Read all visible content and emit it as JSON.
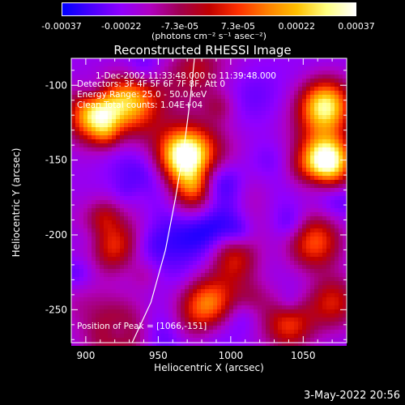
{
  "colorbar": {
    "tick_labels": [
      "-0.00037",
      "-0.00022",
      "-7.3e-05",
      "7.3e-05",
      "0.00022",
      "0.00037"
    ],
    "tick_values": [
      -0.00037,
      -0.00022,
      -7.3e-05,
      7.3e-05,
      0.00022,
      0.00037
    ],
    "units": "(photons cm⁻² s⁻¹ asec⁻²)",
    "colors": [
      "#0000ff",
      "#4b00ff",
      "#9000ff",
      "#b000c0",
      "#a00050",
      "#c00000",
      "#ff3000",
      "#ff8000",
      "#ffc000",
      "#ffff80",
      "#ffffff"
    ]
  },
  "annotations": {
    "time_range": "1-Dec-2002 11:33:48.000 to 11:39:48.000",
    "detectors": "Detectors: 3F 4F 5F 6F 7F 8F, Att 0",
    "energy": "Energy Range: 25.0 - 50.0 keV",
    "method": "Clean    Total counts: 1.04E+04",
    "peak": "Position of Peak = [1066,-151]"
  },
  "timestamp": "3-May-2022 20:56",
  "chart_data": {
    "type": "heatmap",
    "title": "Reconstructed RHESSI Image",
    "xlabel": "Heliocentric X (arcsec)",
    "ylabel": "Heliocentric Y (arcsec)",
    "xlim": [
      890,
      1080
    ],
    "ylim": [
      -272,
      -82
    ],
    "xticks": [
      900,
      950,
      1000,
      1050
    ],
    "yticks": [
      -100,
      -150,
      -200,
      -250
    ],
    "peak_position": [
      1066,
      -151
    ],
    "bright_sources": [
      {
        "x": 1066,
        "y": -151,
        "intensity": 1.0
      },
      {
        "x": 968,
        "y": -148,
        "intensity": 0.85
      },
      {
        "x": 905,
        "y": -120,
        "intensity": 0.7
      },
      {
        "x": 930,
        "y": -110,
        "intensity": 0.6
      },
      {
        "x": 1065,
        "y": -115,
        "intensity": 0.75
      },
      {
        "x": 1058,
        "y": -205,
        "intensity": 0.6
      },
      {
        "x": 1000,
        "y": -215,
        "intensity": 0.55
      },
      {
        "x": 920,
        "y": -210,
        "intensity": 0.55
      },
      {
        "x": 985,
        "y": -245,
        "intensity": 0.5
      },
      {
        "x": 1040,
        "y": -260,
        "intensity": 0.45
      },
      {
        "x": 1070,
        "y": -245,
        "intensity": 0.4
      },
      {
        "x": 975,
        "y": -175,
        "intensity": 0.45
      }
    ],
    "limb_curve": [
      [
        932,
        -272
      ],
      [
        945,
        -245
      ],
      [
        955,
        -210
      ],
      [
        962,
        -175
      ],
      [
        968,
        -140
      ],
      [
        972,
        -110
      ],
      [
        975,
        -82
      ]
    ]
  }
}
